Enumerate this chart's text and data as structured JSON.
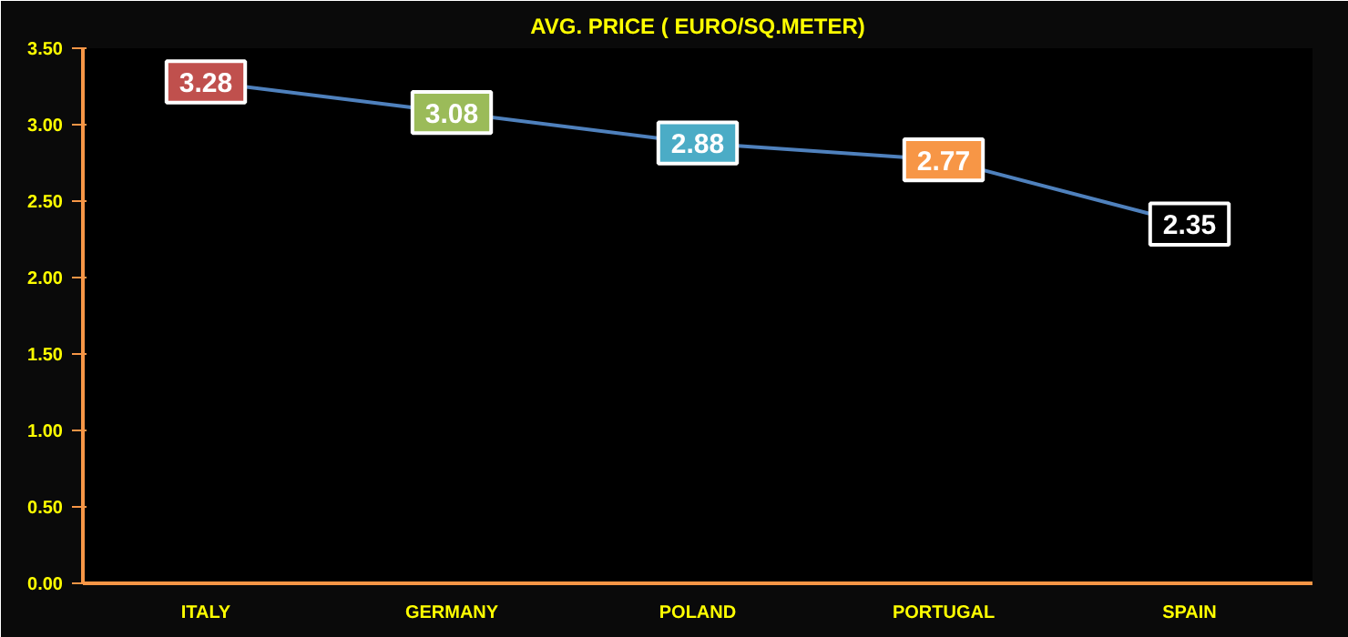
{
  "chart_data": {
    "type": "line",
    "title": "AVG. PRICE ( EURO/SQ.METER)",
    "categories": [
      "ITALY",
      "GERMANY",
      "POLAND",
      "PORTUGAL",
      "SPAIN"
    ],
    "series": [
      {
        "color": "#4f81bd",
        "values": [
          3.28,
          3.08,
          2.88,
          2.77,
          2.35
        ]
      }
    ],
    "colors": [
      "#c0504d",
      "#9bbb59",
      "#4bacc6",
      "#f79646",
      "#000000"
    ],
    "ylim": [
      0,
      3.5
    ],
    "yticks": [
      {
        "value": 0,
        "label": "0.00"
      },
      {
        "value": 0.5,
        "label": "0.50"
      },
      {
        "value": 1,
        "label": "1.00"
      },
      {
        "value": 1.5,
        "label": "1.50"
      },
      {
        "value": 2,
        "label": "2.00"
      },
      {
        "value": 2.5,
        "label": "2.50"
      },
      {
        "value": 3,
        "label": "3.00"
      },
      {
        "value": 3.5,
        "label": "3.50"
      }
    ],
    "data_labels": true,
    "grid": false,
    "marker": "square",
    "line_style": "solid"
  }
}
